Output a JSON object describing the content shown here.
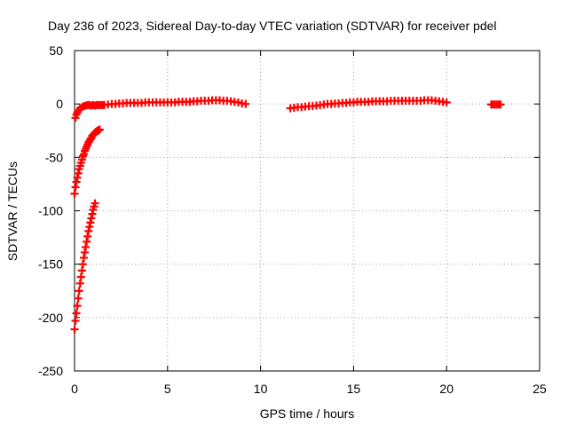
{
  "chart_data": {
    "type": "scatter",
    "title": "Day 236 of 2023, Sidereal Day-to-day VTEC variation (SDTVAR) for receiver pdel",
    "xlabel": "GPS time / hours",
    "ylabel": "SDTVAR / TECUs",
    "xlim": [
      0,
      25
    ],
    "ylim": [
      -250,
      50
    ],
    "xticks": [
      "0",
      "5",
      "10",
      "15",
      "20",
      "25"
    ],
    "yticks": [
      "50",
      "0",
      "-50",
      "-100",
      "-150",
      "-200",
      "-250"
    ],
    "grid": true,
    "legend": "none",
    "marker": "plus",
    "color": "#ff0000",
    "series": [
      {
        "x": [
          0.05,
          0.1,
          0.15,
          0.2,
          0.3,
          0.4,
          0.5,
          0.6,
          0.7,
          0.8,
          0.9,
          1.0,
          1.1,
          1.2,
          1.3,
          1.4,
          1.5,
          1.6,
          1.8,
          2.0,
          2.2,
          2.4,
          2.6,
          2.8,
          3.0,
          3.2,
          3.4,
          3.6,
          3.8,
          4.0,
          4.2,
          4.4,
          4.6,
          4.8,
          5.0,
          5.2,
          5.4,
          5.6,
          5.8,
          6.0,
          6.2,
          6.4,
          6.6,
          6.8,
          7.0,
          7.2,
          7.4,
          7.6,
          7.8,
          8.0,
          8.2,
          8.4,
          8.6,
          8.8,
          9.0,
          9.2
        ],
        "y": [
          -13,
          -10,
          -8,
          -6,
          -4,
          -3,
          -2,
          -1.5,
          -1,
          -1,
          -1.5,
          -1,
          -1.5,
          -1,
          -1,
          -1,
          -1,
          -1,
          -0.5,
          0,
          0,
          0.5,
          0.5,
          1,
          1,
          1,
          1,
          1,
          1.5,
          1.5,
          1.5,
          1.5,
          1.5,
          1.5,
          1.5,
          1.5,
          1.5,
          2,
          2,
          2,
          2,
          2.5,
          2.5,
          3,
          3,
          3,
          3.5,
          3.5,
          3.5,
          3,
          3,
          2.5,
          2,
          1.5,
          0.5,
          0
        ]
      },
      {
        "x": [
          11.6,
          11.8,
          12.0,
          12.2,
          12.4,
          12.6,
          12.8,
          13.0,
          13.2,
          13.4,
          13.6,
          13.8,
          14.0,
          14.2,
          14.4,
          14.6,
          14.8,
          15.0,
          15.2,
          15.4,
          15.6,
          15.8,
          16.0,
          16.2,
          16.4,
          16.6,
          16.8,
          17.0,
          17.2,
          17.4,
          17.6,
          17.8,
          18.0,
          18.2,
          18.4,
          18.6,
          18.8,
          19.0,
          19.2,
          19.4,
          19.6,
          19.8,
          20.0
        ],
        "y": [
          -4,
          -3.5,
          -3,
          -3,
          -2.5,
          -2,
          -2,
          -1.5,
          -1,
          -0.5,
          0,
          0,
          0.5,
          0.5,
          1,
          1,
          1.5,
          1.5,
          2,
          2,
          2,
          2,
          2.5,
          2.5,
          2.5,
          2.5,
          2.5,
          3,
          3,
          3,
          3,
          3,
          3,
          3,
          3,
          3,
          3.5,
          3.5,
          3.5,
          3,
          2.5,
          2,
          1.5
        ]
      },
      {
        "x": [
          22.4,
          22.5,
          22.6,
          22.7,
          22.8,
          22.9
        ],
        "y": [
          -0.5,
          -0.5,
          -0.5,
          -0.5,
          -0.5,
          -0.5
        ]
      },
      {
        "x": [
          0.0,
          0.05,
          0.1,
          0.15,
          0.2,
          0.25,
          0.3,
          0.35,
          0.4,
          0.45,
          0.5,
          0.55,
          0.6,
          0.65,
          0.7,
          0.75,
          0.8,
          0.85,
          0.9,
          0.95,
          1.0,
          1.05,
          1.1,
          1.15,
          1.2,
          1.25,
          1.3,
          1.35
        ],
        "y": [
          -84,
          -78,
          -73,
          -69,
          -65,
          -61,
          -58,
          -55,
          -52,
          -49,
          -47,
          -44,
          -42,
          -40,
          -38,
          -36,
          -35,
          -33,
          -32,
          -30,
          -29,
          -28,
          -27,
          -26,
          -25.5,
          -25,
          -24.5,
          -24
        ]
      },
      {
        "x": [
          0.0,
          0.05,
          0.1,
          0.15,
          0.2,
          0.25,
          0.3,
          0.35,
          0.4,
          0.45,
          0.5,
          0.55,
          0.6,
          0.65,
          0.7,
          0.75,
          0.8,
          0.85,
          0.9,
          0.95,
          1.0,
          1.05,
          1.1
        ],
        "y": [
          -211,
          -203,
          -196,
          -189,
          -182,
          -175,
          -168,
          -162,
          -156,
          -150,
          -144,
          -139,
          -134,
          -129,
          -124,
          -119,
          -115,
          -111,
          -107,
          -103,
          -99,
          -96,
          -93
        ]
      }
    ]
  }
}
